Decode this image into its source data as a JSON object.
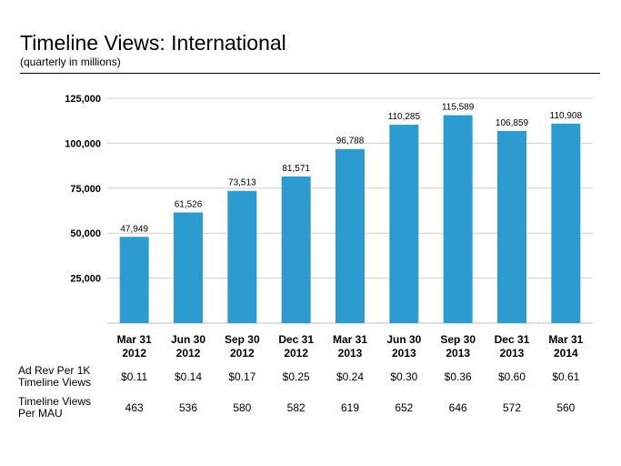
{
  "title": "Timeline Views: International",
  "subtitle": "(quarterly in millions)",
  "chart_data": {
    "type": "bar",
    "categories": [
      [
        "Mar 31",
        "2012"
      ],
      [
        "Jun 30",
        "2012"
      ],
      [
        "Sep 30",
        "2012"
      ],
      [
        "Dec 31",
        "2012"
      ],
      [
        "Mar 31",
        "2013"
      ],
      [
        "Jun 30",
        "2013"
      ],
      [
        "Sep 30",
        "2013"
      ],
      [
        "Dec 31",
        "2013"
      ],
      [
        "Mar 31",
        "2014"
      ]
    ],
    "values": [
      47949,
      61526,
      73513,
      81571,
      96788,
      110285,
      115589,
      106859,
      110908
    ],
    "value_labels": [
      "47,949",
      "61,526",
      "73,513",
      "81,571",
      "96,788",
      "110,285",
      "115,589",
      "106,859",
      "110,908"
    ],
    "ylim": [
      0,
      125000
    ],
    "yticks": [
      25000,
      50000,
      75000,
      100000,
      125000
    ],
    "ytick_labels": [
      "25,000",
      "50,000",
      "75,000",
      "100,000",
      "125,000"
    ],
    "grid": true,
    "bar_color": "#2b9bd0"
  },
  "table": {
    "rows": [
      {
        "label_lines": [
          "Ad Rev Per 1K",
          "Timeline Views"
        ],
        "values": [
          "$0.11",
          "$0.14",
          "$0.17",
          "$0.25",
          "$0.24",
          "$0.30",
          "$0.36",
          "$0.60",
          "$0.61"
        ]
      },
      {
        "label_lines": [
          "Timeline Views",
          "Per MAU"
        ],
        "values": [
          "463",
          "536",
          "580",
          "582",
          "619",
          "652",
          "646",
          "572",
          "560"
        ]
      }
    ]
  }
}
